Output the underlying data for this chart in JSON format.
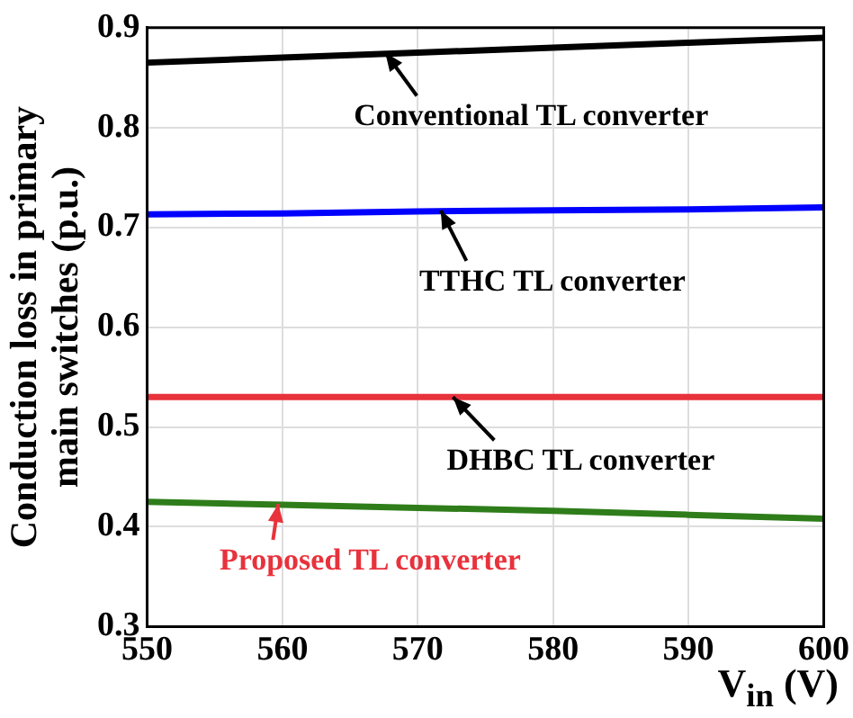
{
  "chart_data": {
    "type": "line",
    "xlabel": "V$_{in}$ (V)",
    "ylabel": "Conduction loss in primary main switches (p.u.)",
    "x": [
      550,
      560,
      570,
      580,
      590,
      600
    ],
    "series": [
      {
        "color": "#000000",
        "values": [
          0.865,
          0.87,
          0.875,
          0.88,
          0.885,
          0.89
        ]
      },
      {
        "color": "#0000ff",
        "values": [
          0.713,
          0.714,
          0.716,
          0.717,
          0.718,
          0.72
        ]
      },
      {
        "color": "#e8323c",
        "values": [
          0.53,
          0.53,
          0.53,
          0.53,
          0.53,
          0.53
        ]
      },
      {
        "color": "#2e7d1a",
        "values": [
          0.425,
          0.422,
          0.419,
          0.416,
          0.412,
          0.408
        ]
      }
    ],
    "xlim": [
      550,
      600
    ],
    "xticks": [
      550,
      560,
      570,
      580,
      590,
      600
    ],
    "ylim": [
      0.3,
      0.9
    ],
    "yticks": [
      0.3,
      0.4,
      0.5,
      0.6,
      0.7,
      0.8,
      0.9
    ],
    "grid": true,
    "marker": "none",
    "line_style": "solid",
    "annotations": [
      {
        "text": "Conventional TL converter",
        "x": 567.6,
        "y": 0.875
      },
      {
        "text": "TTHC TL converter",
        "x": 571.7,
        "y": 0.717
      },
      {
        "text": "DHBC TL converter",
        "x": 572.6,
        "y": 0.53
      },
      {
        "text": "Proposed TL converter",
        "x": 559.7,
        "y": 0.423
      }
    ]
  }
}
